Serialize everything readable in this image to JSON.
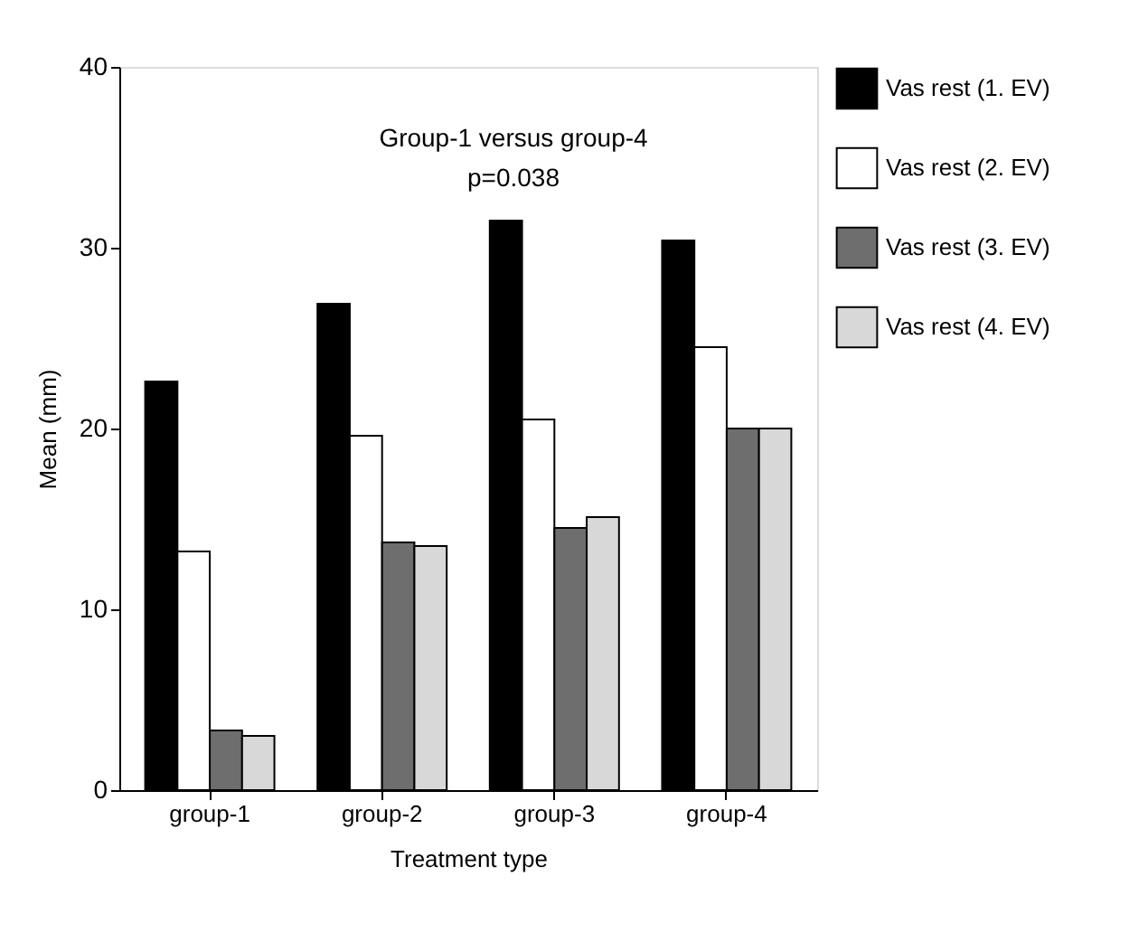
{
  "chart_data": {
    "type": "bar",
    "xlabel": "Treatment type",
    "ylabel": "Mean (mm)",
    "categories": [
      "group-1",
      "group-2",
      "group-3",
      "group-4"
    ],
    "series": [
      {
        "name": "Vas rest (1. EV)",
        "color": "#000000",
        "values": [
          22.6,
          26.9,
          31.5,
          30.4
        ]
      },
      {
        "name": "Vas rest (2. EV)",
        "color": "#ffffff",
        "values": [
          13.2,
          19.6,
          20.5,
          24.5
        ]
      },
      {
        "name": "Vas rest (3. EV)",
        "color": "#6e6e6e",
        "values": [
          3.3,
          13.7,
          14.5,
          20.0
        ]
      },
      {
        "name": "Vas rest (4. EV)",
        "color": "#d8d8d8",
        "values": [
          3.0,
          13.5,
          15.1,
          20.0
        ]
      }
    ],
    "ylim": [
      0,
      40
    ],
    "yticks": [
      0,
      10,
      20,
      30,
      40
    ],
    "grid": false,
    "legend": "right",
    "annotations": [
      "Group-1 versus group-4",
      "p=0.038"
    ]
  }
}
